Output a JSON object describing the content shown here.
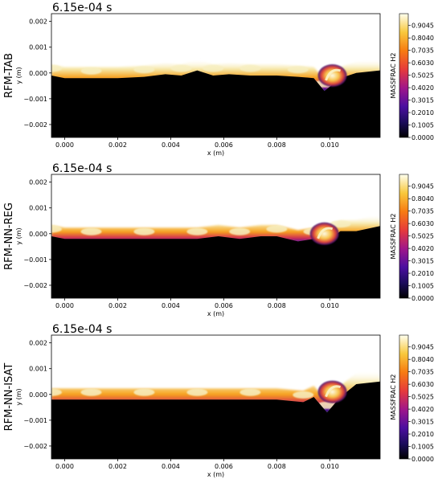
{
  "chart_data": [
    {
      "type": "heatmap",
      "title": "6.15e-04  s",
      "row_label": "RFM-TAB",
      "xlabel": "x (m)",
      "ylabel": "y (m)",
      "xlim": [
        -0.0005,
        0.0119
      ],
      "ylim": [
        -0.0025,
        0.0023
      ],
      "x_ticks": [
        "0.000",
        "0.002",
        "0.004",
        "0.006",
        "0.008",
        "0.010"
      ],
      "x_tick_values": [
        0.0,
        0.002,
        0.004,
        0.006,
        0.008,
        0.01
      ],
      "y_ticks": [
        "0.002",
        "0.001",
        "0.000",
        "−0.001",
        "−0.002"
      ],
      "y_tick_values": [
        0.002,
        0.001,
        0.0,
        -0.001,
        -0.002
      ],
      "colorbar_label": "MASSFRAC H2",
      "colorbar_ticks": [
        "0.9045",
        "0.8040",
        "0.7035",
        "0.6030",
        "0.5025",
        "0.4020",
        "0.3015",
        "0.2010",
        "0.1005",
        "0.0000"
      ],
      "colorbar_tick_values": [
        0.9045,
        0.804,
        0.7035,
        0.603,
        0.5025,
        0.402,
        0.3015,
        0.201,
        0.1005,
        0.0
      ],
      "interface_y": [
        [
          -0.0005,
          -0.0001
        ],
        [
          0.0,
          -0.0002
        ],
        [
          0.001,
          -0.0002
        ],
        [
          0.002,
          -0.0002
        ],
        [
          0.003,
          -0.00015
        ],
        [
          0.0038,
          -5e-05
        ],
        [
          0.0044,
          -0.0001
        ],
        [
          0.005,
          0.0001
        ],
        [
          0.0056,
          -0.0001
        ],
        [
          0.0062,
          -5e-05
        ],
        [
          0.007,
          -0.0001
        ],
        [
          0.008,
          -0.0001
        ],
        [
          0.0088,
          -0.00015
        ],
        [
          0.0094,
          -0.0002
        ],
        [
          0.0098,
          -0.0007
        ],
        [
          0.0104,
          -0.0002
        ],
        [
          0.011,
          0.0
        ],
        [
          0.0119,
          0.0001
        ]
      ],
      "roll_up": {
        "x": 0.0101,
        "y": -0.0001
      }
    },
    {
      "type": "heatmap",
      "title": "6.15e-04  s",
      "row_label": "RFM-NN-REG",
      "xlabel": "x (m)",
      "ylabel": "y (m)",
      "xlim": [
        -0.0005,
        0.0119
      ],
      "ylim": [
        -0.0025,
        0.0023
      ],
      "x_ticks": [
        "0.000",
        "0.002",
        "0.004",
        "0.006",
        "0.008",
        "0.010"
      ],
      "x_tick_values": [
        0.0,
        0.002,
        0.004,
        0.006,
        0.008,
        0.01
      ],
      "y_ticks": [
        "0.002",
        "0.001",
        "0.000",
        "−0.001",
        "−0.002"
      ],
      "y_tick_values": [
        0.002,
        0.001,
        0.0,
        -0.001,
        -0.002
      ],
      "colorbar_label": "MASSFRAC H2",
      "colorbar_ticks": [
        "0.9045",
        "0.8040",
        "0.7035",
        "0.6030",
        "0.5025",
        "0.4020",
        "0.3015",
        "0.2010",
        "0.1005",
        "0.0000"
      ],
      "colorbar_tick_values": [
        0.9045,
        0.804,
        0.7035,
        0.603,
        0.5025,
        0.402,
        0.3015,
        0.201,
        0.1005,
        0.0
      ],
      "interface_y": [
        [
          -0.0005,
          -0.0001
        ],
        [
          0.0,
          -0.0002
        ],
        [
          0.001,
          -0.0002
        ],
        [
          0.002,
          -0.0002
        ],
        [
          0.003,
          -0.0002
        ],
        [
          0.004,
          -0.0002
        ],
        [
          0.005,
          -0.0002
        ],
        [
          0.0058,
          -0.0001
        ],
        [
          0.0066,
          -0.0002
        ],
        [
          0.0074,
          -0.0001
        ],
        [
          0.008,
          -0.0001
        ],
        [
          0.0088,
          -0.0003
        ],
        [
          0.0094,
          -0.0002
        ],
        [
          0.0098,
          -0.0004
        ],
        [
          0.0104,
          0.0001
        ],
        [
          0.011,
          0.0001
        ],
        [
          0.0119,
          0.0003
        ]
      ],
      "roll_up": {
        "x": 0.0098,
        "y": 0.0
      }
    },
    {
      "type": "heatmap",
      "title": "6.15e-04  s",
      "row_label": "RFM-NN-ISAT",
      "xlabel": "x (m)",
      "ylabel": "y (m)",
      "xlim": [
        -0.0005,
        0.0119
      ],
      "ylim": [
        -0.0025,
        0.0023
      ],
      "x_ticks": [
        "0.000",
        "0.002",
        "0.004",
        "0.006",
        "0.008",
        "0.010"
      ],
      "x_tick_values": [
        0.0,
        0.002,
        0.004,
        0.006,
        0.008,
        0.01
      ],
      "y_ticks": [
        "0.002",
        "0.001",
        "0.000",
        "−0.001",
        "−0.002"
      ],
      "y_tick_values": [
        0.002,
        0.001,
        0.0,
        -0.001,
        -0.002
      ],
      "colorbar_label": "MASSFRAC H2",
      "colorbar_ticks": [
        "0.9045",
        "0.8040",
        "0.7035",
        "0.6030",
        "0.5025",
        "0.4020",
        "0.3015",
        "0.2010",
        "0.1005",
        "0.0000"
      ],
      "colorbar_tick_values": [
        0.9045,
        0.804,
        0.7035,
        0.603,
        0.5025,
        0.402,
        0.3015,
        0.201,
        0.1005,
        0.0
      ],
      "interface_y": [
        [
          -0.0005,
          -0.0002
        ],
        [
          0.0,
          -0.0002
        ],
        [
          0.001,
          -0.0002
        ],
        [
          0.002,
          -0.0002
        ],
        [
          0.003,
          -0.0002
        ],
        [
          0.004,
          -0.0002
        ],
        [
          0.005,
          -0.0002
        ],
        [
          0.006,
          -0.0002
        ],
        [
          0.007,
          -0.0002
        ],
        [
          0.008,
          -0.0002
        ],
        [
          0.009,
          -0.0003
        ],
        [
          0.0094,
          -0.0001
        ],
        [
          0.0099,
          -0.0007
        ],
        [
          0.0104,
          -0.0001
        ],
        [
          0.011,
          0.0004
        ],
        [
          0.0119,
          0.0005
        ]
      ],
      "roll_up": {
        "x": 0.0101,
        "y": 0.0001
      }
    }
  ]
}
